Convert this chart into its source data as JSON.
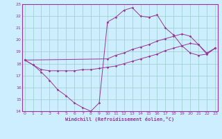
{
  "xlabel": "Windchill (Refroidissement éolien,°C)",
  "bg_color": "#cceeff",
  "line_color": "#993399",
  "grid_color": "#99cccc",
  "xmin": 0,
  "xmax": 23,
  "ymin": 14,
  "ymax": 23,
  "curve1_x": [
    0,
    1,
    2,
    3,
    4,
    5,
    6,
    7,
    8,
    9,
    10,
    11,
    12,
    13,
    14,
    15,
    16,
    17,
    18,
    19,
    20,
    21,
    22,
    23
  ],
  "curve1_y": [
    18.3,
    17.9,
    17.3,
    16.6,
    15.8,
    15.3,
    14.7,
    14.3,
    14.0,
    14.7,
    21.5,
    21.9,
    22.5,
    22.7,
    22.0,
    21.9,
    22.1,
    21.0,
    20.4,
    19.5,
    18.9,
    18.7,
    18.8,
    19.3
  ],
  "curve2_x": [
    0,
    1,
    2,
    3,
    4,
    5,
    6,
    7,
    8,
    9,
    10,
    11,
    12,
    13,
    14,
    15,
    16,
    17,
    18,
    19,
    20,
    21,
    22,
    23
  ],
  "curve2_y": [
    18.3,
    17.9,
    17.5,
    17.4,
    17.4,
    17.4,
    17.4,
    17.5,
    17.5,
    17.6,
    17.7,
    17.8,
    18.0,
    18.2,
    18.4,
    18.6,
    18.8,
    19.1,
    19.3,
    19.5,
    19.7,
    19.6,
    18.8,
    19.3
  ],
  "curve3_x": [
    0,
    10,
    11,
    12,
    13,
    14,
    15,
    16,
    17,
    18,
    19,
    20,
    21,
    22,
    23
  ],
  "curve3_y": [
    18.3,
    18.4,
    18.7,
    18.9,
    19.2,
    19.4,
    19.6,
    19.9,
    20.1,
    20.3,
    20.5,
    20.3,
    19.6,
    18.9,
    19.3
  ]
}
